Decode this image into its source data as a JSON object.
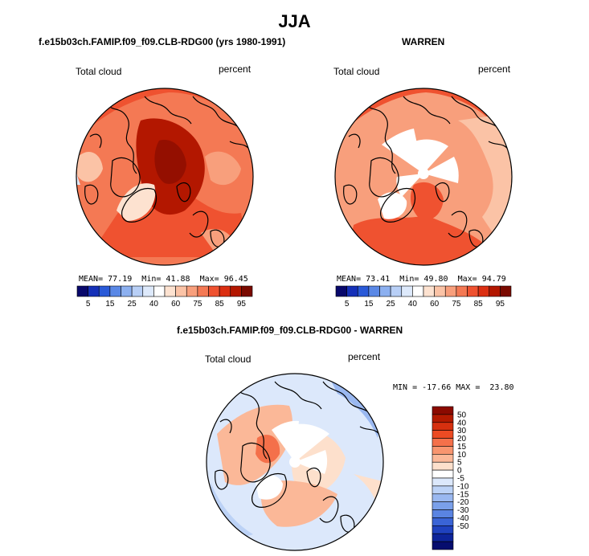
{
  "title": "JJA",
  "panels": [
    {
      "subtitle": "f.e15b03ch.FAMIP.f09_f09.CLB-RDG00 (yrs 1980-1991)",
      "variable": "Total cloud",
      "units": "percent",
      "stats": {
        "mean_label": "MEAN=",
        "mean": "77.19",
        "min_label": "Min=",
        "min": "41.88",
        "max_label": "Max=",
        "max": "96.45"
      }
    },
    {
      "subtitle": "WARREN",
      "variable": "Total cloud",
      "units": "percent",
      "stats": {
        "mean_label": "MEAN=",
        "mean": "73.41",
        "min_label": "Min=",
        "min": "49.80",
        "max_label": "Max=",
        "max": "94.79"
      }
    },
    {
      "subtitle": "f.e15b03ch.FAMIP.f09_f09.CLB-RDG00 - WARREN",
      "variable": "Total cloud",
      "units": "percent",
      "minmax": "MIN = -17.66 MAX =  23.80"
    }
  ],
  "chart_data": [
    {
      "type": "heatmap",
      "projection": "polar stereographic (north)",
      "title": "f.e15b03ch.FAMIP.f09_f09.CLB-RDG00 (yrs 1980-1991)",
      "variable": "Total cloud",
      "units": "percent",
      "mean": 77.19,
      "min": 41.88,
      "max": 96.45,
      "colorbar": {
        "orientation": "horizontal",
        "levels": [
          5,
          10,
          15,
          20,
          25,
          30,
          40,
          50,
          60,
          70,
          75,
          80,
          85,
          90,
          95
        ],
        "tick_labels": [
          "5",
          "15",
          "25",
          "40",
          "60",
          "75",
          "85",
          "95"
        ],
        "colors": [
          "#08086b",
          "#1530b8",
          "#2a5ad8",
          "#5a88e6",
          "#8cb0f0",
          "#b8cff6",
          "#dde9fb",
          "#ffffff",
          "#fde2d0",
          "#fbc3a6",
          "#f89f7c",
          "#f47954",
          "#ef5230",
          "#db2f12",
          "#b31700",
          "#7a0a00"
        ]
      }
    },
    {
      "type": "heatmap",
      "projection": "polar stereographic (north)",
      "title": "WARREN",
      "variable": "Total cloud",
      "units": "percent",
      "mean": 73.41,
      "min": 49.8,
      "max": 94.79,
      "colorbar": {
        "orientation": "horizontal",
        "levels": [
          5,
          10,
          15,
          20,
          25,
          30,
          40,
          50,
          60,
          70,
          75,
          80,
          85,
          90,
          95
        ],
        "tick_labels": [
          "5",
          "15",
          "25",
          "40",
          "60",
          "75",
          "85",
          "95"
        ],
        "colors": [
          "#08086b",
          "#1530b8",
          "#2a5ad8",
          "#5a88e6",
          "#8cb0f0",
          "#b8cff6",
          "#dde9fb",
          "#ffffff",
          "#fde2d0",
          "#fbc3a6",
          "#f89f7c",
          "#f47954",
          "#ef5230",
          "#db2f12",
          "#b31700",
          "#7a0a00"
        ]
      }
    },
    {
      "type": "heatmap",
      "projection": "polar stereographic (north)",
      "title": "f.e15b03ch.FAMIP.f09_f09.CLB-RDG00 - WARREN",
      "variable": "Total cloud",
      "units": "percent",
      "min": -17.66,
      "max": 23.8,
      "colorbar": {
        "orientation": "vertical",
        "tick_labels": [
          "50",
          "40",
          "30",
          "20",
          "15",
          "10",
          "5",
          "0",
          "-5",
          "-10",
          "-15",
          "-20",
          "-30",
          "-40",
          "-50"
        ],
        "colors": [
          "#8b0a00",
          "#b31a00",
          "#d6300f",
          "#ec4b23",
          "#f4704a",
          "#f8956f",
          "#fbb898",
          "#fde0cc",
          "#ffffff",
          "#dce8fb",
          "#bcd2f6",
          "#9ab8f0",
          "#7aa0ea",
          "#5a84e2",
          "#3a64d6",
          "#1f42bf",
          "#0d249a",
          "#060d6e"
        ]
      }
    }
  ]
}
